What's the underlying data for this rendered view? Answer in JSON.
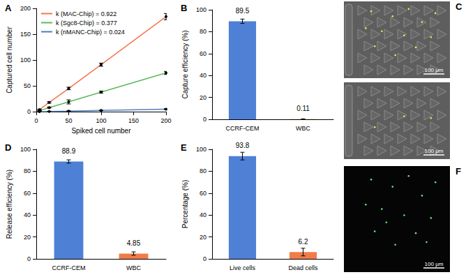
{
  "chart_data": [
    {
      "type": "line",
      "title": "A",
      "x": [
        5,
        20,
        50,
        100,
        200
      ],
      "xlabel": "Spiked cell number",
      "ylabel": "Captured cell number",
      "xlim": [
        0,
        200
      ],
      "ylim": [
        0,
        200
      ],
      "xticks": [
        0,
        50,
        100,
        150,
        200
      ],
      "yticks": [
        0,
        50,
        100,
        150,
        200
      ],
      "grid": false,
      "legend": "upper left",
      "marker": "circle",
      "series": [
        {
          "name": "k (MAC-Chip) = 0.922",
          "color": "#f4764e",
          "values": [
            4,
            18,
            45,
            91,
            184
          ],
          "errors": [
            1,
            1.5,
            2.5,
            3,
            6
          ]
        },
        {
          "name": "k (Sgc8-Chip) = 0.377",
          "color": "#5cb85c",
          "values": [
            2,
            8,
            19,
            38,
            75
          ],
          "errors": [
            0.5,
            1,
            4,
            2,
            3
          ]
        },
        {
          "name": "k (nMANC-Chip) = 0.024",
          "color": "#4a7ec4",
          "values": [
            0.2,
            0.5,
            1.2,
            2.5,
            5
          ],
          "errors": [
            0.2,
            0.3,
            0.5,
            0.5,
            0.8
          ]
        }
      ]
    },
    {
      "type": "bar",
      "title": "B",
      "categories": [
        "CCRF-CEM",
        "WBC"
      ],
      "values": [
        89.5,
        0.11
      ],
      "errors": [
        2,
        0.3
      ],
      "colors": [
        "#4e80d6",
        "#f07c4a"
      ],
      "ylabel": "Capture efficiency (%)",
      "ylim": [
        0,
        100
      ],
      "yticks": [
        0,
        20,
        40,
        60,
        80,
        100
      ],
      "grid": false,
      "data_labels": true
    },
    {
      "type": "bar",
      "title": "D",
      "categories": [
        "CCRF-CEM",
        "WBC"
      ],
      "values": [
        88.9,
        4.85
      ],
      "errors": [
        1.5,
        1.5
      ],
      "colors": [
        "#4e80d6",
        "#f07c4a"
      ],
      "ylabel": "Release efficiency (%)",
      "ylim": [
        0,
        100
      ],
      "yticks": [
        0,
        20,
        40,
        60,
        80,
        100
      ],
      "grid": false,
      "data_labels": true
    },
    {
      "type": "bar",
      "title": "E",
      "categories": [
        "Live cells",
        "Dead cells"
      ],
      "values": [
        93.8,
        6.2
      ],
      "errors": [
        3.5,
        3.5
      ],
      "colors": [
        "#4e80d6",
        "#f07c4a"
      ],
      "ylabel": "Percentage (%)",
      "ylim": [
        0,
        100
      ],
      "yticks": [
        0,
        20,
        40,
        60,
        80,
        100
      ],
      "grid": false,
      "data_labels": true
    }
  ],
  "images": [
    {
      "label": "C",
      "frames": [
        {
          "scale_bar": "100 μm"
        },
        {
          "scale_bar": "100 μm"
        }
      ]
    },
    {
      "label": "F",
      "frames": [
        {
          "scale_bar": "100 μm"
        }
      ]
    }
  ]
}
